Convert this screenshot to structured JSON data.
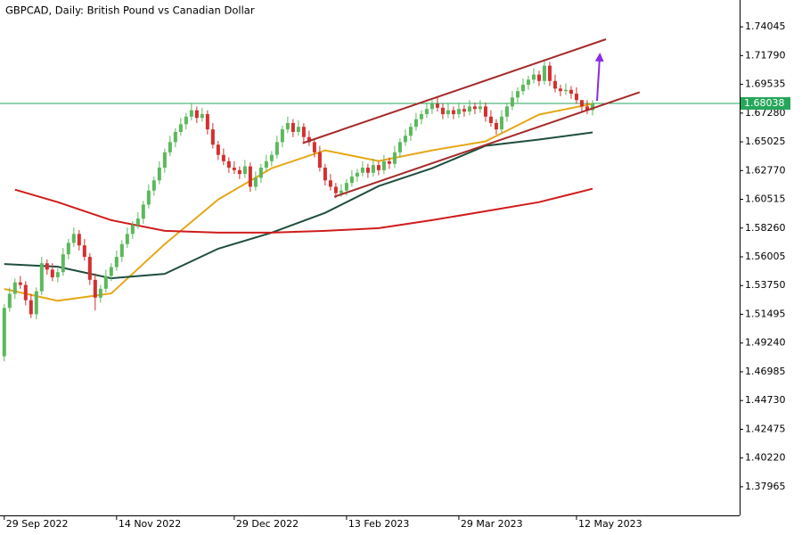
{
  "chart_data": {
    "type": "candlestick",
    "title": "GBPCAD, Daily:  British Pound vs Canadian Dollar",
    "open": [
      1.482,
      1.52,
      1.531,
      1.54,
      1.538,
      1.526,
      1.515,
      1.533,
      1.555,
      1.55,
      1.544,
      1.548,
      1.562,
      1.571,
      1.578,
      1.569,
      1.56,
      1.542,
      1.528,
      1.535,
      1.545,
      1.552,
      1.56,
      1.57,
      1.578,
      1.585,
      1.59,
      1.601,
      1.612,
      1.62,
      1.63,
      1.642,
      1.65,
      1.658,
      1.664,
      1.67,
      1.675,
      1.669,
      1.672,
      1.66,
      1.648,
      1.64,
      1.635,
      1.63,
      1.628,
      1.625,
      1.631,
      1.615,
      1.622,
      1.63,
      1.635,
      1.64,
      1.65,
      1.66,
      1.665,
      1.658,
      1.662,
      1.654,
      1.65,
      1.642,
      1.63,
      1.62,
      1.615,
      1.61,
      1.612,
      1.618,
      1.623,
      1.626,
      1.63,
      1.626,
      1.632,
      1.628,
      1.635,
      1.633,
      1.642,
      1.65,
      1.655,
      1.662,
      1.668,
      1.672,
      1.676,
      1.68,
      1.677,
      1.672,
      1.675,
      1.672,
      1.676,
      1.674,
      1.678,
      1.676,
      1.678,
      1.67,
      1.665,
      1.66,
      1.67,
      1.678,
      1.685,
      1.69,
      1.695,
      1.699,
      1.703,
      1.698,
      1.71,
      1.698,
      1.692,
      1.69,
      1.691,
      1.688,
      1.683,
      1.678,
      1.675
    ],
    "high": [
      1.523,
      1.536,
      1.543,
      1.545,
      1.541,
      1.531,
      1.536,
      1.56,
      1.558,
      1.555,
      1.551,
      1.567,
      1.574,
      1.583,
      1.581,
      1.574,
      1.563,
      1.547,
      1.538,
      1.55,
      1.555,
      1.565,
      1.573,
      1.583,
      1.588,
      1.595,
      1.604,
      1.617,
      1.623,
      1.635,
      1.645,
      1.655,
      1.661,
      1.669,
      1.673,
      1.68,
      1.678,
      1.677,
      1.675,
      1.665,
      1.651,
      1.645,
      1.638,
      1.635,
      1.631,
      1.636,
      1.634,
      1.627,
      1.633,
      1.64,
      1.643,
      1.655,
      1.663,
      1.67,
      1.668,
      1.667,
      1.665,
      1.659,
      1.653,
      1.647,
      1.633,
      1.625,
      1.618,
      1.617,
      1.621,
      1.628,
      1.629,
      1.635,
      1.633,
      1.637,
      1.635,
      1.64,
      1.638,
      1.647,
      1.653,
      1.66,
      1.665,
      1.673,
      1.675,
      1.681,
      1.683,
      1.685,
      1.68,
      1.68,
      1.678,
      1.681,
      1.679,
      1.683,
      1.681,
      1.683,
      1.681,
      1.675,
      1.668,
      1.675,
      1.681,
      1.69,
      1.693,
      1.7,
      1.702,
      1.708,
      1.706,
      1.715,
      1.713,
      1.703,
      1.695,
      1.696,
      1.694,
      1.693,
      1.681,
      1.683,
      1.683
    ],
    "low": [
      1.478,
      1.517,
      1.527,
      1.535,
      1.522,
      1.512,
      1.511,
      1.53,
      1.546,
      1.541,
      1.54,
      1.545,
      1.558,
      1.568,
      1.565,
      1.557,
      1.538,
      1.518,
      1.524,
      1.532,
      1.541,
      1.549,
      1.556,
      1.567,
      1.574,
      1.582,
      1.586,
      1.598,
      1.608,
      1.617,
      1.626,
      1.639,
      1.646,
      1.655,
      1.66,
      1.667,
      1.665,
      1.666,
      1.656,
      1.645,
      1.636,
      1.632,
      1.626,
      1.625,
      1.621,
      1.622,
      1.611,
      1.612,
      1.618,
      1.627,
      1.631,
      1.637,
      1.646,
      1.657,
      1.654,
      1.655,
      1.65,
      1.647,
      1.638,
      1.627,
      1.616,
      1.612,
      1.606,
      1.607,
      1.608,
      1.615,
      1.619,
      1.623,
      1.622,
      1.623,
      1.624,
      1.625,
      1.629,
      1.63,
      1.638,
      1.647,
      1.651,
      1.659,
      1.664,
      1.669,
      1.672,
      1.674,
      1.668,
      1.669,
      1.668,
      1.669,
      1.67,
      1.671,
      1.672,
      1.673,
      1.666,
      1.662,
      1.656,
      1.657,
      1.666,
      1.675,
      1.681,
      1.687,
      1.691,
      1.696,
      1.694,
      1.695,
      1.694,
      1.689,
      1.686,
      1.687,
      1.684,
      1.68,
      1.674,
      1.672,
      1.671
    ],
    "close": [
      1.52,
      1.531,
      1.54,
      1.538,
      1.526,
      1.515,
      1.533,
      1.555,
      1.55,
      1.544,
      1.548,
      1.562,
      1.571,
      1.578,
      1.569,
      1.56,
      1.542,
      1.528,
      1.535,
      1.545,
      1.552,
      1.56,
      1.57,
      1.578,
      1.585,
      1.59,
      1.601,
      1.612,
      1.62,
      1.63,
      1.642,
      1.65,
      1.658,
      1.664,
      1.67,
      1.675,
      1.669,
      1.672,
      1.66,
      1.648,
      1.64,
      1.635,
      1.63,
      1.628,
      1.625,
      1.631,
      1.615,
      1.622,
      1.63,
      1.635,
      1.64,
      1.65,
      1.66,
      1.665,
      1.658,
      1.662,
      1.654,
      1.65,
      1.642,
      1.63,
      1.62,
      1.615,
      1.61,
      1.612,
      1.618,
      1.623,
      1.626,
      1.63,
      1.626,
      1.632,
      1.628,
      1.635,
      1.633,
      1.642,
      1.65,
      1.655,
      1.662,
      1.668,
      1.672,
      1.676,
      1.68,
      1.677,
      1.672,
      1.675,
      1.672,
      1.676,
      1.674,
      1.678,
      1.676,
      1.678,
      1.67,
      1.665,
      1.66,
      1.67,
      1.678,
      1.685,
      1.69,
      1.695,
      1.699,
      1.703,
      1.698,
      1.71,
      1.698,
      1.692,
      1.69,
      1.691,
      1.688,
      1.683,
      1.678,
      1.675,
      1.68
    ],
    "up_color": "#5cb85c",
    "down_color": "#d32f2f",
    "overlays": [
      {
        "color": "#e6a817",
        "x": [
          0,
          10,
          20,
          30,
          40,
          50,
          60,
          70,
          80,
          90,
          100,
          110
        ],
        "values": [
          1.5349,
          1.5256,
          1.5313,
          1.5699,
          1.605,
          1.6295,
          1.6436,
          1.6352,
          1.6436,
          1.6506,
          1.6716,
          1.6801
        ]
      },
      {
        "color": "#1f4e3d",
        "x": [
          0,
          10,
          20,
          30,
          40,
          50,
          60,
          70,
          80,
          90,
          100,
          110
        ],
        "values": [
          1.5544,
          1.5523,
          1.5432,
          1.5467,
          1.5664,
          1.579,
          1.5945,
          1.6155,
          1.6295,
          1.6471,
          1.652,
          1.6576
        ]
      },
      {
        "color": "#d01c1c",
        "x": [
          2,
          10,
          20,
          30,
          40,
          50,
          60,
          70,
          80,
          90,
          100,
          110
        ],
        "values": [
          1.6127,
          1.6029,
          1.5888,
          1.5804,
          1.579,
          1.579,
          1.5804,
          1.5825,
          1.5888,
          1.5958,
          1.6029,
          1.6134
        ]
      }
    ],
    "trendlines": [
      {
        "color": "#a52a2a",
        "x": [
          55.8,
          112.5
        ],
        "values": [
          1.6492,
          1.7307
        ]
      },
      {
        "color": "#a52a2a",
        "x": [
          61.7,
          118.8
        ],
        "values": [
          1.6071,
          1.6892
        ]
      }
    ],
    "current_price": 1.68038,
    "current_price_color": "#26a65b",
    "xlim": [
      -0.8,
      137.5
    ],
    "xticks": [
      {
        "value": 0,
        "label": "29 Sep 2022"
      },
      {
        "value": 21,
        "label": "14 Nov 2022"
      },
      {
        "value": 43,
        "label": "29 Dec 2022"
      },
      {
        "value": 64,
        "label": "13 Feb 2023"
      },
      {
        "value": 85,
        "label": "29 Mar 2023"
      },
      {
        "value": 107,
        "label": "12 May 2023"
      }
    ],
    "ylim": [
      1.3572,
      1.7615
    ],
    "yticks": [
      1.74045,
      {
        "value": 1.7179,
        "label": "1.71790"
      },
      1.69535,
      {
        "value": 1.6728,
        "label": "1.67280"
      },
      1.65025,
      {
        "value": 1.6277,
        "label": "1.62770"
      },
      1.60515,
      {
        "value": 1.5826,
        "label": "1.58260"
      },
      1.56005,
      {
        "value": 1.5375,
        "label": "1.53750"
      },
      1.51495,
      {
        "value": 1.4924,
        "label": "1.49240"
      },
      1.46985,
      {
        "value": 1.4473,
        "label": "1.44730"
      },
      1.42475,
      {
        "value": 1.4022,
        "label": "1.40220"
      },
      1.37965
    ]
  }
}
